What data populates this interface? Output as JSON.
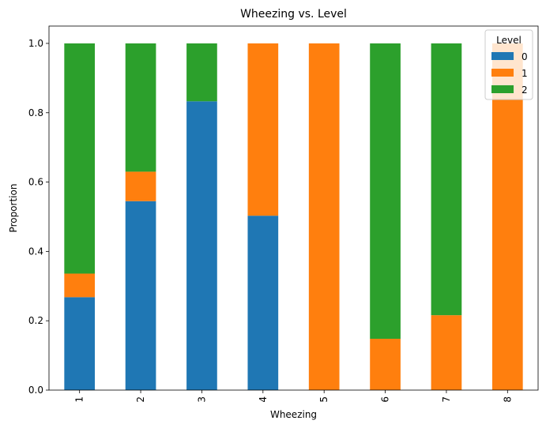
{
  "chart_data": {
    "type": "bar",
    "stacked": true,
    "title": "Wheezing vs. Level",
    "xlabel": "Wheezing",
    "ylabel": "Proportion",
    "categories": [
      "1",
      "2",
      "3",
      "4",
      "5",
      "6",
      "7",
      "8"
    ],
    "ylim": [
      0,
      1.05
    ],
    "yticks": [
      "0.0",
      "0.2",
      "0.4",
      "0.6",
      "0.8",
      "1.0"
    ],
    "legend": {
      "title": "Level",
      "placement": "top-right"
    },
    "grid": false,
    "series": [
      {
        "name": "0",
        "color": "#1f77b4",
        "values": [
          0.268,
          0.545,
          0.833,
          0.503,
          0.0,
          0.0,
          0.0,
          0.0
        ]
      },
      {
        "name": "1",
        "color": "#ff7f0e",
        "values": [
          0.068,
          0.085,
          0.0,
          0.497,
          1.0,
          0.148,
          0.216,
          1.0
        ]
      },
      {
        "name": "2",
        "color": "#2ca02c",
        "values": [
          0.664,
          0.37,
          0.167,
          0.0,
          0.0,
          0.852,
          0.784,
          0.0
        ]
      }
    ]
  }
}
